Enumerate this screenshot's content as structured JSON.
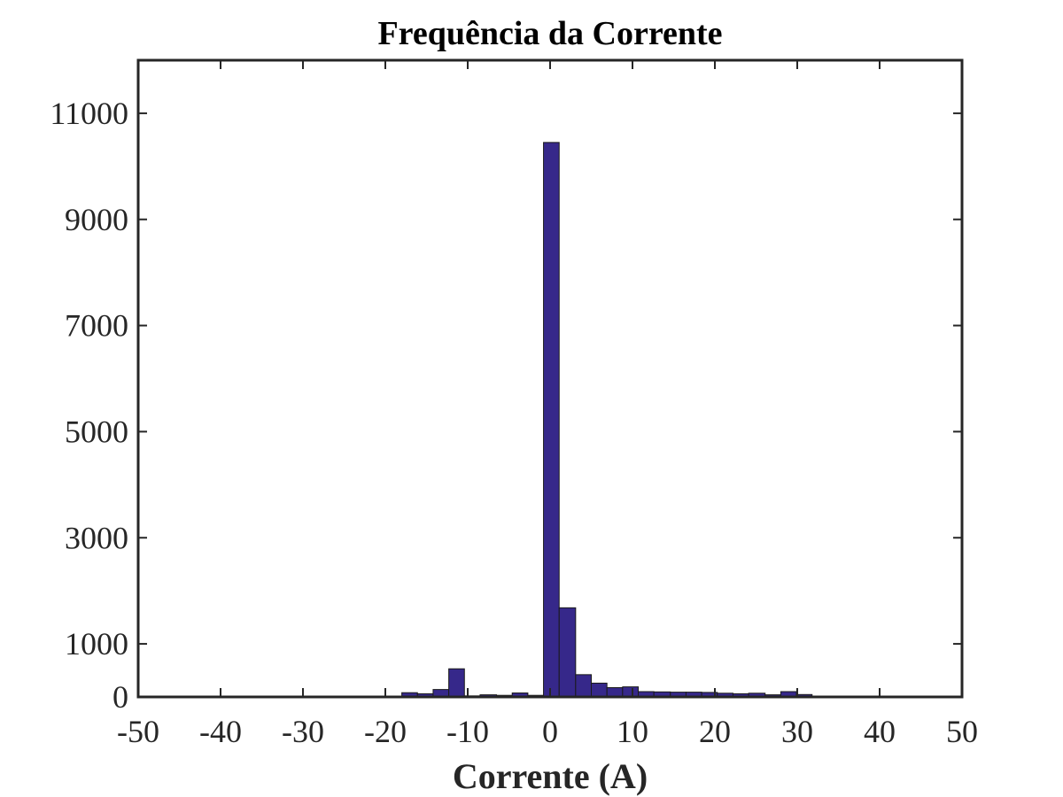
{
  "chart_data": {
    "type": "bar",
    "subtype": "histogram",
    "title": "Frequência da Corrente",
    "xlabel": "Corrente (A)",
    "ylabel": "",
    "xlim": [
      -50,
      50
    ],
    "ylim": [
      0,
      12000
    ],
    "xticks": [
      -50,
      -40,
      -30,
      -20,
      -10,
      0,
      10,
      20,
      30,
      40,
      50
    ],
    "xtick_labels": [
      "-50",
      "-40",
      "-30",
      "-20",
      "-10",
      "0",
      "10",
      "20",
      "30",
      "40",
      "50"
    ],
    "yticks": [
      0,
      1000,
      3000,
      5000,
      7000,
      9000,
      11000
    ],
    "ytick_labels": [
      "0",
      "1000",
      "3000",
      "5000",
      "7000",
      "9000",
      "11000"
    ],
    "grid": false,
    "legend": "none",
    "bar_color": "#36288A",
    "bins": [
      {
        "x0": -18.0,
        "x1": -16.1,
        "count": 80
      },
      {
        "x0": -16.1,
        "x1": -14.2,
        "count": 60
      },
      {
        "x0": -14.2,
        "x1": -12.3,
        "count": 140
      },
      {
        "x0": -12.3,
        "x1": -10.4,
        "count": 530
      },
      {
        "x0": -10.4,
        "x1": -8.5,
        "count": 20
      },
      {
        "x0": -8.5,
        "x1": -6.5,
        "count": 40
      },
      {
        "x0": -6.5,
        "x1": -4.6,
        "count": 30
      },
      {
        "x0": -4.6,
        "x1": -2.7,
        "count": 75
      },
      {
        "x0": -2.7,
        "x1": -0.8,
        "count": 30
      },
      {
        "x0": -0.8,
        "x1": 1.1,
        "count": 10450
      },
      {
        "x0": 1.1,
        "x1": 3.1,
        "count": 1680
      },
      {
        "x0": 3.1,
        "x1": 5.0,
        "count": 420
      },
      {
        "x0": 5.0,
        "x1": 6.9,
        "count": 260
      },
      {
        "x0": 6.9,
        "x1": 8.8,
        "count": 175
      },
      {
        "x0": 8.8,
        "x1": 10.7,
        "count": 190
      },
      {
        "x0": 10.7,
        "x1": 12.6,
        "count": 100
      },
      {
        "x0": 12.6,
        "x1": 14.6,
        "count": 95
      },
      {
        "x0": 14.6,
        "x1": 16.5,
        "count": 90
      },
      {
        "x0": 16.5,
        "x1": 18.4,
        "count": 90
      },
      {
        "x0": 18.4,
        "x1": 20.3,
        "count": 85
      },
      {
        "x0": 20.3,
        "x1": 22.2,
        "count": 70
      },
      {
        "x0": 22.2,
        "x1": 24.1,
        "count": 60
      },
      {
        "x0": 24.1,
        "x1": 26.1,
        "count": 70
      },
      {
        "x0": 26.1,
        "x1": 28.0,
        "count": 40
      },
      {
        "x0": 28.0,
        "x1": 29.9,
        "count": 100
      },
      {
        "x0": 29.9,
        "x1": 31.8,
        "count": 45
      },
      {
        "x0": 31.8,
        "x1": 33.7,
        "count": 15
      },
      {
        "x0": 33.7,
        "x1": 35.6,
        "count": 8
      }
    ]
  }
}
